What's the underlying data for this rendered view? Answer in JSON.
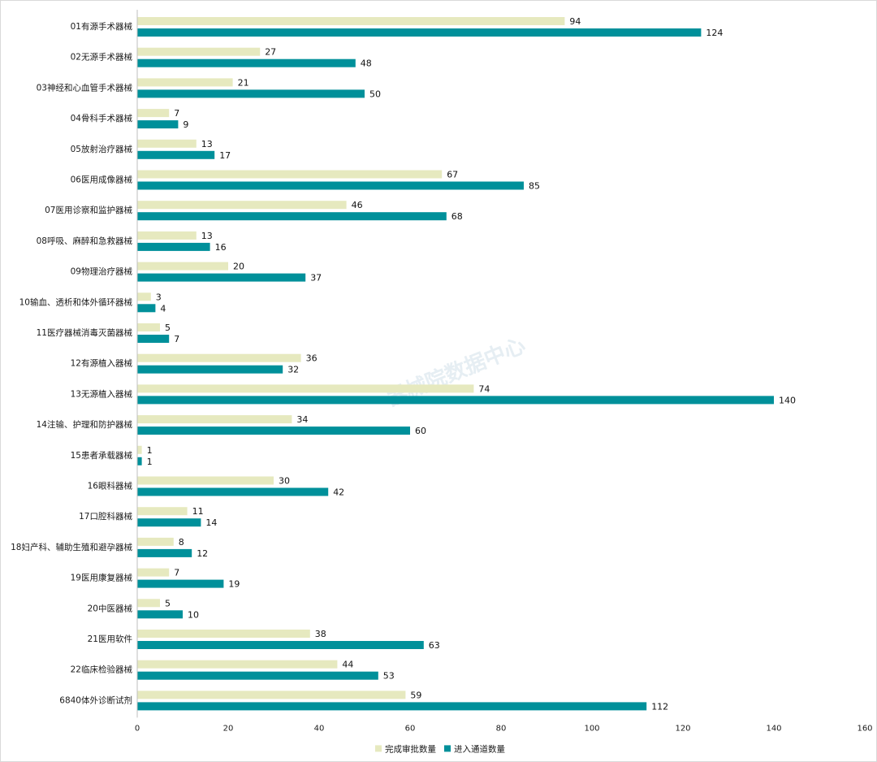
{
  "chart_data": {
    "type": "bar",
    "orientation": "horizontal",
    "categories": [
      "01有源手术器械",
      "02无源手术器械",
      "03神经和心血管手术器械",
      "04骨科手术器械",
      "05放射治疗器械",
      "06医用成像器械",
      "07医用诊察和监护器械",
      "08呼吸、麻醉和急救器械",
      "09物理治疗器械",
      "10输血、透析和体外循环器械",
      "11医疗器械消毒灭菌器械",
      "12有源植入器械",
      "13无源植入器械",
      "14注输、护理和防护器械",
      "15患者承载器械",
      "16眼科器械",
      "17口腔科器械",
      "18妇产科、辅助生殖和避孕器械",
      "19医用康复器械",
      "20中医器械",
      "21医用软件",
      "22临床检验器械",
      "6840体外诊断试剂"
    ],
    "series": [
      {
        "name": "完成审批数量",
        "color": "#e6e9bf",
        "values": [
          94,
          27,
          21,
          7,
          13,
          67,
          46,
          13,
          20,
          3,
          5,
          36,
          74,
          34,
          1,
          30,
          11,
          8,
          7,
          5,
          38,
          44,
          59
        ]
      },
      {
        "name": "进入通道数量",
        "color": "#00909a",
        "values": [
          124,
          48,
          50,
          9,
          17,
          85,
          68,
          16,
          37,
          4,
          7,
          32,
          140,
          60,
          1,
          42,
          14,
          12,
          19,
          10,
          63,
          53,
          112
        ]
      }
    ],
    "xlim": [
      0,
      160
    ],
    "xticks": [
      "0",
      "20",
      "40",
      "60",
      "80",
      "100",
      "120",
      "140",
      "160"
    ],
    "grid": false,
    "legend_position": "bottom-center"
  },
  "watermark": "器械院数据中心"
}
